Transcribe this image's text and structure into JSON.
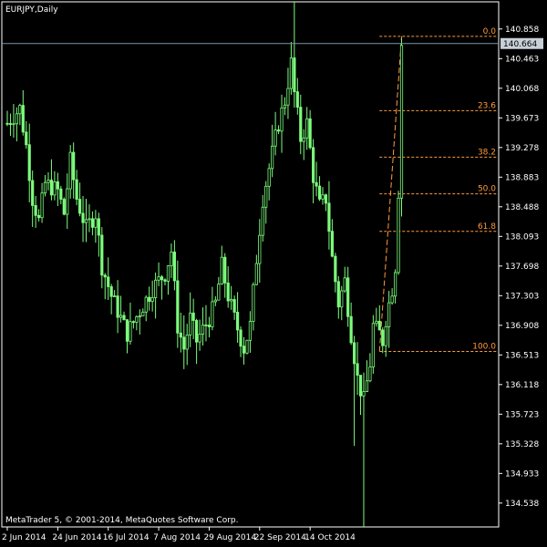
{
  "chart_data": {
    "type": "candlestick",
    "title": "EURJPY,Daily",
    "footer": "MetaTrader 5, © 2001-2014, MetaQuotes Software Corp.",
    "ylim": [
      134.22,
      141.22
    ],
    "y_ticks": [
      "140.858",
      "140.463",
      "140.068",
      "139.673",
      "139.278",
      "138.883",
      "138.488",
      "138.093",
      "137.698",
      "137.303",
      "136.908",
      "136.513",
      "136.118",
      "135.723",
      "135.328",
      "134.933",
      "134.538"
    ],
    "x_ticks": [
      "2 Jun 2014",
      "24 Jun 2014",
      "16 Jul 2014",
      "7 Aug 2014",
      "29 Aug 2014",
      "22 Sep 2014",
      "14 Oct 2014"
    ],
    "current_price": "140.664",
    "fibonacci": {
      "levels": [
        {
          "label": "0.0",
          "value": 140.76
        },
        {
          "label": "23.6",
          "value": 139.77
        },
        {
          "label": "38.2",
          "value": 139.15
        },
        {
          "label": "50.0",
          "value": 138.66
        },
        {
          "label": "61.8",
          "value": 138.16
        },
        {
          "label": "100.0",
          "value": 136.56
        }
      ],
      "swing_low_bar": 118,
      "swing_high_bar": 125
    },
    "candles": []
  },
  "colors": {
    "background": "#000000",
    "candle": "#7cfc7c",
    "frame": "#ffffff",
    "price_line": "#7a96a8",
    "fib": "#ff9b3d",
    "price_box_bg": "#c8d0d8"
  }
}
